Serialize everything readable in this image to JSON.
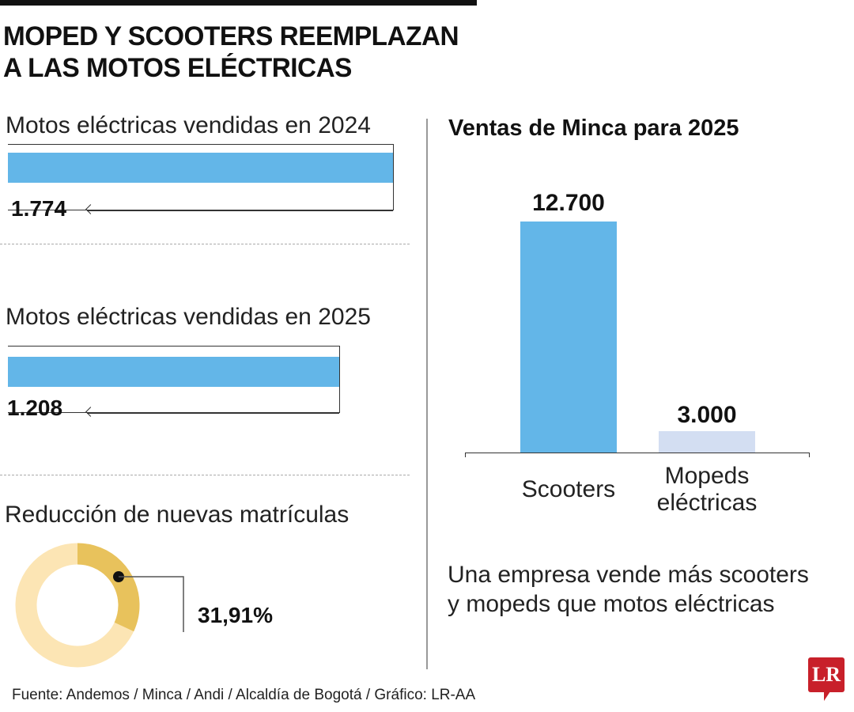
{
  "title_lines": [
    "MOPED Y SCOOTERS REEMPLAZAN",
    "A LAS MOTOS ELÉCTRICAS"
  ],
  "chart_data": [
    {
      "type": "bar",
      "orientation": "horizontal",
      "title": "Motos eléctricas vendidas en 2024",
      "values": [
        1774
      ],
      "data_labels": [
        "1.774"
      ],
      "color": "#63b6e8"
    },
    {
      "type": "bar",
      "orientation": "horizontal",
      "title": "Motos eléctricas vendidas en 2025",
      "values": [
        1208
      ],
      "data_labels": [
        "1.208"
      ],
      "color": "#63b6e8"
    },
    {
      "type": "pie",
      "style": "donut",
      "title": "Reducción de nuevas matrículas",
      "values": [
        31.91,
        68.09
      ],
      "data_labels": [
        "31,91%"
      ],
      "colors": [
        "#e8c25c",
        "#fce5b4"
      ]
    },
    {
      "type": "bar",
      "title": "Ventas de Minca para 2025",
      "categories": [
        "Scooters",
        "Mopeds eléctricas"
      ],
      "values": [
        12700,
        3000
      ],
      "data_labels": [
        "12.700",
        "3.000"
      ],
      "colors": [
        "#63b6e8",
        "#d3def2"
      ]
    }
  ],
  "right_subtitle_lines": [
    "Una empresa vende más scooters",
    "y mopeds que motos eléctricas"
  ],
  "source": "Fuente: Andemos / Minca / Andi / Alcaldía de Bogotá / Gráfico: LR-AA",
  "logo": "LR"
}
